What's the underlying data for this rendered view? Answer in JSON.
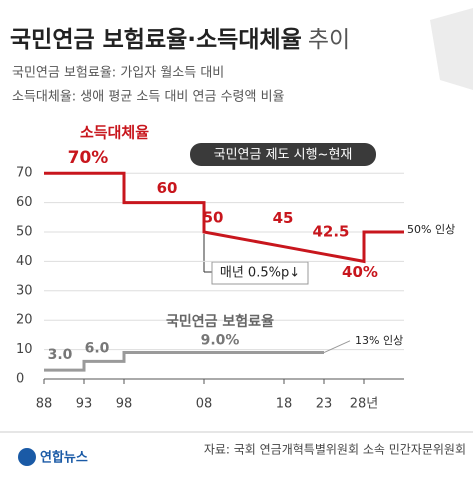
{
  "title": "국민연금 보험료율·소득대체율",
  "title_suffix": "추이",
  "subtitle_lines": [
    "국민연금 보험료율: 가입자 월소득 대비",
    "소득대체율: 생애 평균 소득 대비 연금 수령액 비율"
  ],
  "period_label": "국민연금 제도 시행~현재",
  "slope_note": "매년 0.5%p↓",
  "source": "자료: 국회 연금개혁특별위원회 소속 민간자문위원회",
  "logo": "연합뉴스",
  "chart_data": {
    "type": "line",
    "xlim": [
      1988,
      2033
    ],
    "ylim": [
      0,
      75
    ],
    "xticks": [
      {
        "value": 1988,
        "label": "88"
      },
      {
        "value": 1993,
        "label": "93"
      },
      {
        "value": 1998,
        "label": "98"
      },
      {
        "value": 2008,
        "label": "08"
      },
      {
        "value": 2018,
        "label": "18"
      },
      {
        "value": 2023,
        "label": "23"
      },
      {
        "value": 2028,
        "label": "28년"
      }
    ],
    "yticks": [
      0,
      10,
      20,
      30,
      40,
      50,
      60,
      70
    ],
    "grid": true,
    "series": [
      {
        "name": "소득대체율",
        "color": "#c8161d",
        "x": [
          1988,
          1998,
          1998,
          2008,
          2008,
          2018,
          2023,
          2028,
          2028,
          2033
        ],
        "values": [
          70,
          70,
          60,
          60,
          50,
          45,
          42.5,
          40,
          50,
          50
        ],
        "value_labels": [
          "70%",
          null,
          "60",
          null,
          "50",
          "45",
          "42.5",
          "40%",
          null,
          null
        ]
      },
      {
        "name": "국민연금 보험료율",
        "color": "#9a9a9a",
        "x": [
          1988,
          1993,
          1993,
          1998,
          1998,
          2023
        ],
        "values": [
          3,
          3,
          6,
          6,
          9,
          9
        ],
        "value_labels": [
          "3.0",
          null,
          "6.0",
          null,
          "9.0%",
          null
        ]
      }
    ],
    "annotations": [
      {
        "text": "50% 인상",
        "value": 50
      },
      {
        "text": "13% 인상",
        "value": 13
      }
    ]
  }
}
